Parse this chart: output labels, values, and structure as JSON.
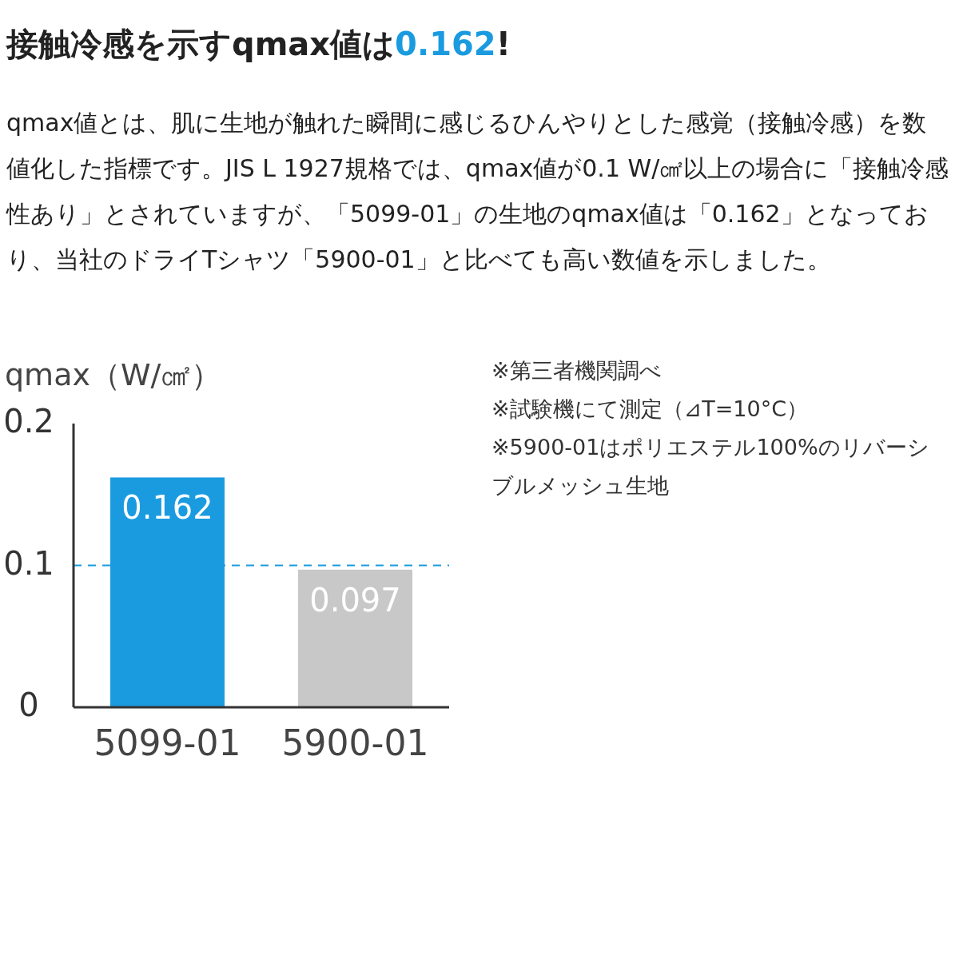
{
  "chart_data": {
    "type": "bar",
    "title": "接触冷感を示すqmax値は0.162!",
    "subtitle": "qmax値とは、肌に生地が触れた瞬間に感じるひんやりとした感覚（接触冷感）を数値化した指標です。JIS L 1927規格では、qmax値が0.1 W/㎠以上の場合に「接触冷感性あり」とされていますが、「5099-01」の生地のqmax値は「0.162」となっており、当社のドライTシャツ「5900-01」と比べても高い数値を示しました。",
    "ylabel": "qmax（W/㎠）",
    "categories": [
      "5099-01",
      "5900-01"
    ],
    "values": [
      0.162,
      0.097
    ],
    "colors": [
      "#1a9be0",
      "#c8c8c8"
    ],
    "ylim": [
      0,
      0.2
    ],
    "yticks": [
      0,
      0.1,
      0.2
    ],
    "data_labels": true,
    "ref_lines": [
      {
        "axis": "y",
        "value": 0.1,
        "color": "#1a9be0",
        "line_style": "dashed"
      }
    ],
    "annotations": [
      "※第三者機関調べ",
      "※試験機にて測定（⊿T=10°C）",
      "※5900-01はポリエステル100%のリバーシブルメッシュ生地"
    ]
  }
}
